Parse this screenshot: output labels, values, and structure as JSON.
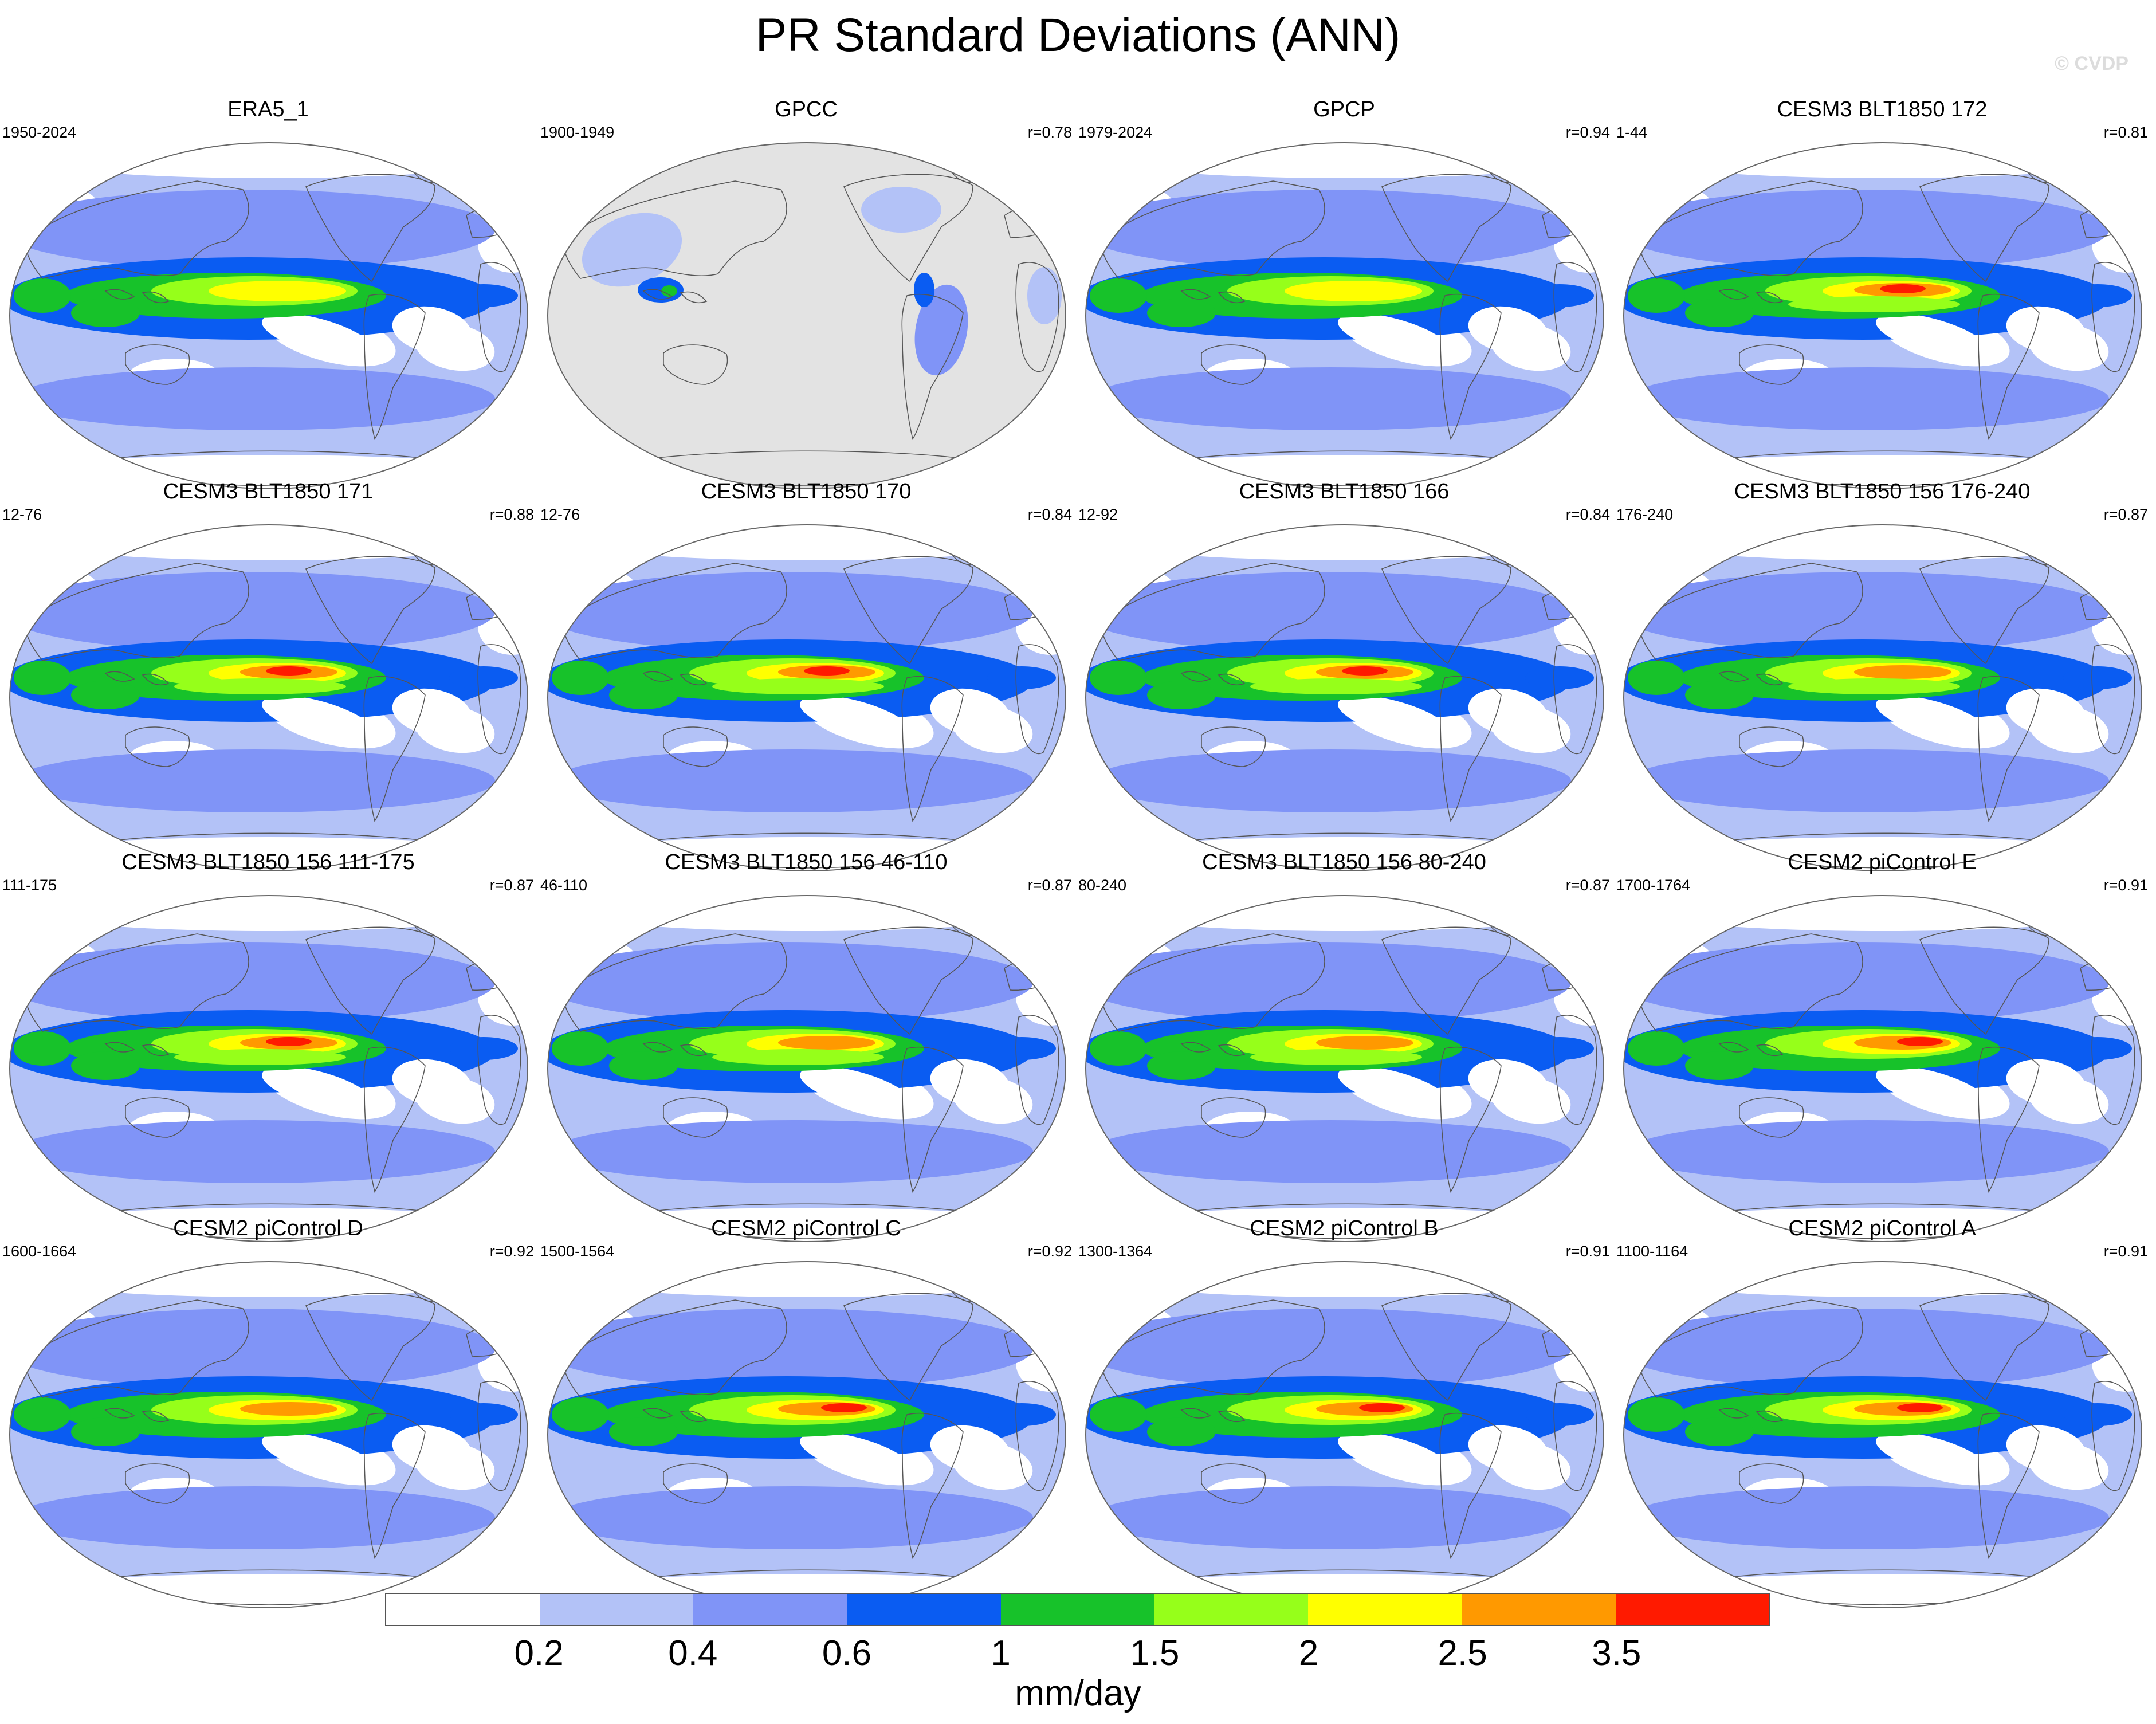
{
  "header": {
    "title": "PR Standard Deviations (ANN)",
    "watermark": "© CVDP"
  },
  "chart_data": {
    "type": "heatmap",
    "projection": "Robinson (Pacific-centered)",
    "variable": "Precipitation standard deviation",
    "units": "mm/day",
    "colorbar": {
      "levels": [
        "0.2",
        "0.4",
        "0.6",
        "1",
        "1.5",
        "2",
        "2.5",
        "3.5"
      ],
      "colors": [
        "#ffffff",
        "#b3c2f7",
        "#8094f7",
        "#0a5cf2",
        "#17c22a",
        "#96ff1a",
        "#ffff00",
        "#ff9900",
        "#ff1a00"
      ]
    },
    "panels": [
      {
        "name": "ERA5_1",
        "period": "1950-2024",
        "r": "",
        "max_level": 6,
        "type": "reanalysis"
      },
      {
        "name": "GPCC",
        "period": "1900-1949",
        "r": "r=0.78",
        "max_level": 4,
        "type": "land"
      },
      {
        "name": "GPCP",
        "period": "1979-2024",
        "r": "r=0.94",
        "max_level": 6,
        "type": "obs"
      },
      {
        "name": "CESM3 BLT1850 172",
        "period": "1-44",
        "r": "r=0.81",
        "max_level": 8,
        "type": "model3"
      },
      {
        "name": "CESM3 BLT1850 171",
        "period": "12-76",
        "r": "r=0.88",
        "max_level": 8,
        "type": "model3"
      },
      {
        "name": "CESM3 BLT1850 170",
        "period": "12-76",
        "r": "r=0.84",
        "max_level": 8,
        "type": "model3"
      },
      {
        "name": "CESM3 BLT1850 166",
        "period": "12-92",
        "r": "r=0.84",
        "max_level": 8,
        "type": "model3"
      },
      {
        "name": "CESM3 BLT1850 156 176-240",
        "period": "176-240",
        "r": "r=0.87",
        "max_level": 7,
        "type": "model3"
      },
      {
        "name": "CESM3 BLT1850 156 111-175",
        "period": "111-175",
        "r": "r=0.87",
        "max_level": 8,
        "type": "model3"
      },
      {
        "name": "CESM3 BLT1850 156 46-110",
        "period": "46-110",
        "r": "r=0.87",
        "max_level": 7,
        "type": "model3"
      },
      {
        "name": "CESM3 BLT1850 156 80-240",
        "period": "80-240",
        "r": "r=0.87",
        "max_level": 7,
        "type": "model3"
      },
      {
        "name": "CESM2 piControl E",
        "period": "1700-1764",
        "r": "r=0.91",
        "max_level": 8,
        "type": "model2"
      },
      {
        "name": "CESM2 piControl D",
        "period": "1600-1664",
        "r": "r=0.92",
        "max_level": 7,
        "type": "model2"
      },
      {
        "name": "CESM2 piControl C",
        "period": "1500-1564",
        "r": "r=0.92",
        "max_level": 8,
        "type": "model2"
      },
      {
        "name": "CESM2 piControl B",
        "period": "1300-1364",
        "r": "r=0.91",
        "max_level": 8,
        "type": "model2"
      },
      {
        "name": "CESM2 piControl A",
        "period": "1100-1164",
        "r": "r=0.91",
        "max_level": 8,
        "type": "model2"
      }
    ]
  }
}
